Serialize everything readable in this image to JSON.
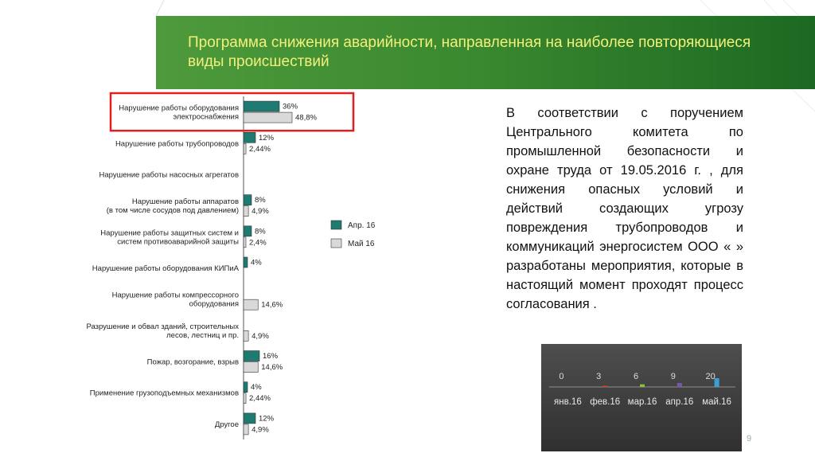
{
  "header": {
    "title": "Программа снижения аварийности, направленная на наиболее повторяющиеся виды происшествий"
  },
  "body_text": {
    "paragraph1": "В соответствии с поручением Центрального комитета по промышленной безопасности и охране труда от 19.05.2016 г. , для снижения опасных условий и действий создающих угрозу повреждения трубопроводов и коммуникаций энергосистем ООО « » разработаны мероприятия, которые в настоящий момент проходят процесс",
    "paragraph2": "согласования ."
  },
  "page_number": "9",
  "colors": {
    "series_apr": "#1f7a72",
    "series_may": "#d9d9d9",
    "highlight": "#e02020"
  },
  "chart_data": [
    {
      "type": "bar",
      "orientation": "horizontal",
      "categories": [
        "Нарушение работы оборудования\nэлектроснабжения",
        "Нарушение работы трубопроводов",
        "Нарушение работы насосных агрегатов",
        "Нарушение работы аппаратов\n(в том числе сосудов под давлением)",
        "Нарушение работы защитных систем и\nсистем противоаварийной защиты",
        "Нарушение работы оборудования КИПиА",
        "Нарушение работы компрессорного\nоборудования",
        "Разрушение и обвал зданий, строительных\nлесов, лестниц и пр.",
        "Пожар, возгорание, взрыв",
        "Применение грузоподъемных механизмов",
        "Другое"
      ],
      "series": [
        {
          "name": "Апр. 16",
          "values": [
            36,
            12,
            null,
            8,
            8,
            4,
            null,
            null,
            16,
            4,
            12
          ],
          "labels": [
            "36%",
            "12%",
            "",
            "8%",
            "8%",
            "4%",
            "",
            "",
            "16%",
            "4%",
            "12%"
          ]
        },
        {
          "name": "Май 16",
          "values": [
            48.8,
            2.44,
            null,
            4.9,
            2.4,
            null,
            14.6,
            4.9,
            14.6,
            2.44,
            4.9
          ],
          "labels": [
            "48,8%",
            "2,44%",
            "",
            "4,9%",
            "2,4%",
            "",
            "14,6%",
            "4,9%",
            "14,6%",
            "2,44%",
            "4,9%"
          ]
        }
      ],
      "highlighted_category": 0,
      "legend_position": "right"
    },
    {
      "type": "bar",
      "categories": [
        "янв.16",
        "фев.16",
        "мар.16",
        "апр.16",
        "май.16"
      ],
      "values": [
        0,
        3,
        6,
        9,
        20
      ],
      "labels": [
        "0",
        "3",
        "6",
        "9",
        "20"
      ],
      "colors": [
        "#cccccc",
        "#d03a30",
        "#8fbf3a",
        "#7a58a8",
        "#3aa0d0"
      ]
    }
  ]
}
